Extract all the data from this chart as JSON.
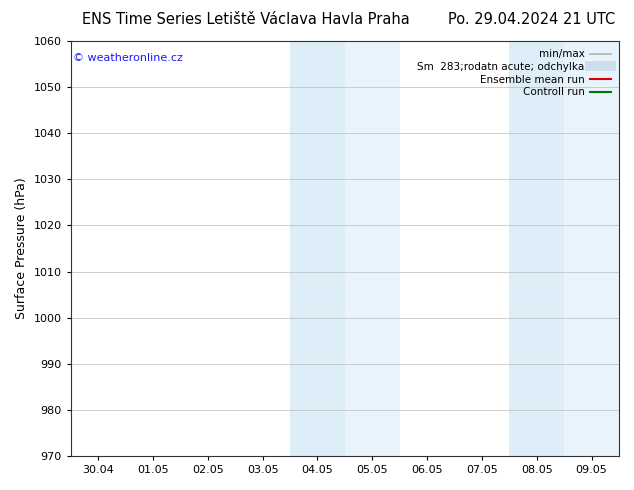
{
  "title_left": "ENS Time Series Letiště Václava Havla Praha",
  "title_right": "Po. 29.04.2024 21 UTC",
  "ylabel": "Surface Pressure (hPa)",
  "ylim": [
    970,
    1060
  ],
  "yticks": [
    970,
    980,
    990,
    1000,
    1010,
    1020,
    1030,
    1040,
    1050,
    1060
  ],
  "xtick_labels": [
    "30.04",
    "01.05",
    "02.05",
    "03.05",
    "04.05",
    "05.05",
    "06.05",
    "07.05",
    "08.05",
    "09.05"
  ],
  "xtick_positions": [
    0,
    1,
    2,
    3,
    4,
    5,
    6,
    7,
    8,
    9
  ],
  "xlim": [
    -0.5,
    9.5
  ],
  "shaded_regions": [
    {
      "x_start": 3.5,
      "x_end": 4.5,
      "color": "#ddeef8"
    },
    {
      "x_start": 4.5,
      "x_end": 5.5,
      "color": "#e8f3fb"
    },
    {
      "x_start": 7.5,
      "x_end": 8.5,
      "color": "#ddeef8"
    },
    {
      "x_start": 8.5,
      "x_end": 9.5,
      "color": "#e8f3fb"
    }
  ],
  "watermark": "© weatheronline.cz",
  "watermark_color": "#1a1aff",
  "legend_items": [
    {
      "label": "min/max",
      "color": "#b0b0b0",
      "lw": 1.2,
      "type": "line"
    },
    {
      "label": "Sm  283;rodatn acute; odchylka",
      "color": "#ccdded",
      "lw": 7,
      "type": "band"
    },
    {
      "label": "Ensemble mean run",
      "color": "#dd0000",
      "lw": 1.5,
      "type": "line"
    },
    {
      "label": "Controll run",
      "color": "#007700",
      "lw": 1.5,
      "type": "line"
    }
  ],
  "bg_color": "#ffffff",
  "grid_color": "#bbbbbb",
  "title_fontsize": 10.5,
  "tick_fontsize": 8,
  "ylabel_fontsize": 9,
  "legend_fontsize": 7.5
}
